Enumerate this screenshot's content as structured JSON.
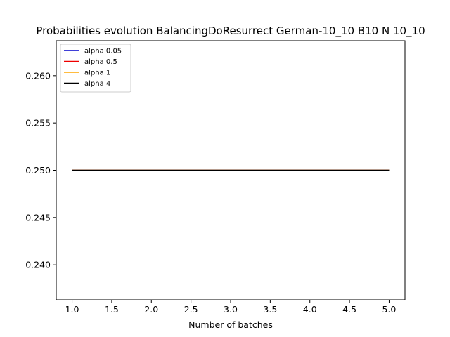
{
  "chart_data": {
    "type": "line",
    "title": "Probabilities evolution BalancingDoResurrect German-10_10 B10 N 10_10",
    "xlabel": "Number of batches",
    "ylabel": "",
    "x": [
      1,
      2,
      3,
      4,
      5
    ],
    "xlim": [
      0.8,
      5.2
    ],
    "ylim": [
      0.2363,
      0.2637
    ],
    "xticks": [
      "1.0",
      "1.5",
      "2.0",
      "2.5",
      "3.0",
      "3.5",
      "4.0",
      "4.5",
      "5.0"
    ],
    "yticks": [
      "0.240",
      "0.245",
      "0.250",
      "0.255",
      "0.260"
    ],
    "grid": false,
    "legend_position": "top-left",
    "series": [
      {
        "name": "alpha 0.05",
        "color": "#0000cc",
        "values": [
          0.25,
          0.25,
          0.25,
          0.25,
          0.25
        ]
      },
      {
        "name": "alpha 0.5",
        "color": "#ee0000",
        "values": [
          0.25,
          0.25,
          0.25,
          0.25,
          0.25
        ]
      },
      {
        "name": "alpha 1",
        "color": "#ffa500",
        "values": [
          0.25,
          0.25,
          0.25,
          0.25,
          0.25
        ]
      },
      {
        "name": "alpha 4",
        "color": "#000000",
        "values": [
          0.25,
          0.25,
          0.25,
          0.25,
          0.25
        ]
      }
    ]
  }
}
